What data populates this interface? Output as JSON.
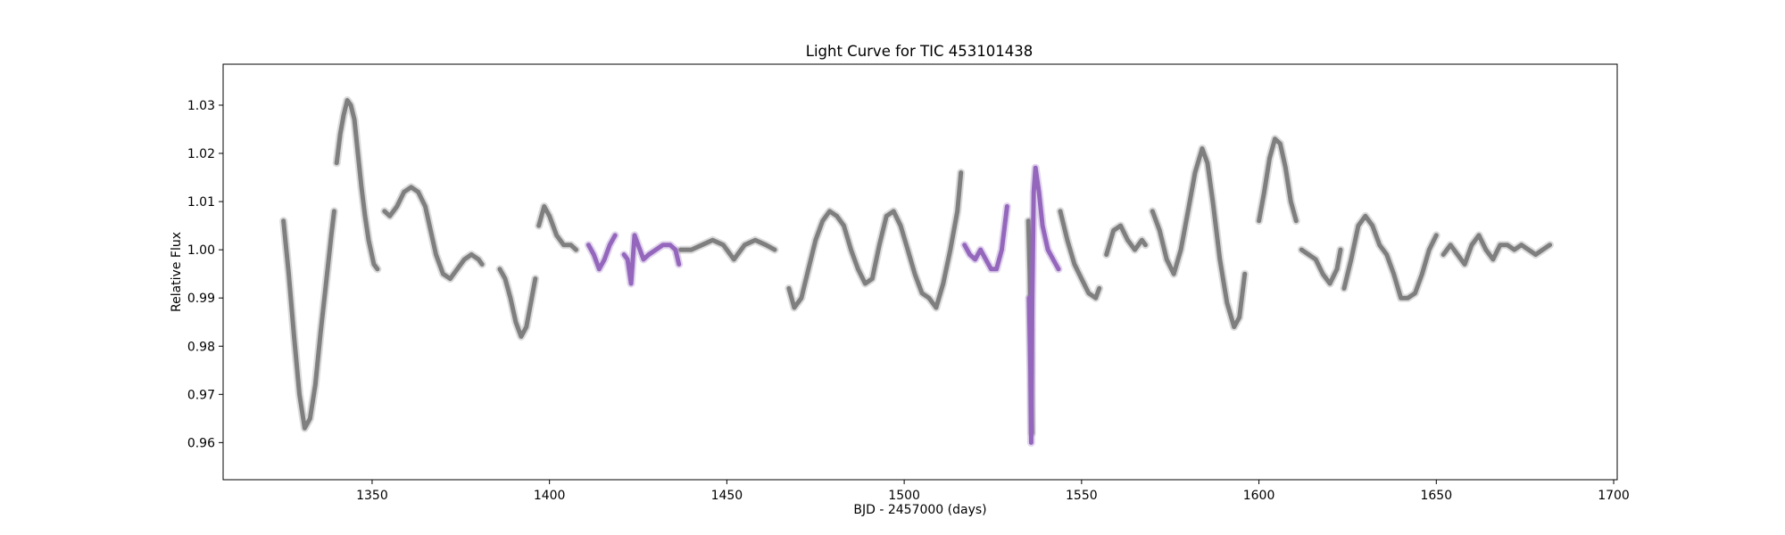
{
  "chart_data": {
    "type": "scatter",
    "title": "Light Curve for TIC 453101438",
    "xlabel": "BJD - 2457000 (days)",
    "ylabel": "Relative Flux",
    "xlim": [
      1308,
      1701
    ],
    "ylim": [
      0.9523,
      1.0385
    ],
    "xticks": [
      1350,
      1400,
      1450,
      1500,
      1550,
      1600,
      1650,
      1700
    ],
    "yticks": [
      0.96,
      0.97,
      0.98,
      0.99,
      1.0,
      1.01,
      1.02,
      1.03
    ],
    "grid": false,
    "legend": "none",
    "colors": {
      "gray": "#7f7f7f",
      "purple": "#9467bd"
    },
    "series": [
      {
        "color_key": "gray",
        "segments": [
          [
            [
              1325.0,
              1.006
            ],
            [
              1326.5,
              0.995
            ],
            [
              1328.0,
              0.982
            ],
            [
              1329.5,
              0.97
            ],
            [
              1331.0,
              0.963
            ],
            [
              1332.5,
              0.965
            ],
            [
              1334.0,
              0.972
            ],
            [
              1335.5,
              0.983
            ],
            [
              1337.0,
              0.993
            ],
            [
              1338.5,
              1.003
            ],
            [
              1339.3,
              1.008
            ]
          ],
          [
            [
              1340.0,
              1.018
            ],
            [
              1341.0,
              1.024
            ],
            [
              1342.0,
              1.028
            ],
            [
              1343.0,
              1.031
            ],
            [
              1344.0,
              1.03
            ],
            [
              1345.0,
              1.027
            ],
            [
              1346.0,
              1.02
            ],
            [
              1347.0,
              1.013
            ],
            [
              1348.0,
              1.007
            ],
            [
              1349.0,
              1.002
            ],
            [
              1350.5,
              0.997
            ],
            [
              1351.5,
              0.996
            ]
          ],
          [
            [
              1353.5,
              1.008
            ],
            [
              1355.0,
              1.007
            ],
            [
              1357.0,
              1.009
            ],
            [
              1359.0,
              1.012
            ],
            [
              1361.0,
              1.013
            ],
            [
              1363.0,
              1.012
            ],
            [
              1365.0,
              1.009
            ],
            [
              1366.5,
              1.004
            ],
            [
              1368.0,
              0.999
            ],
            [
              1370.0,
              0.995
            ],
            [
              1372.0,
              0.994
            ],
            [
              1374.0,
              0.996
            ],
            [
              1376.0,
              0.998
            ],
            [
              1378.0,
              0.999
            ],
            [
              1380.0,
              0.998
            ],
            [
              1381.0,
              0.997
            ]
          ],
          [
            [
              1386.0,
              0.996
            ],
            [
              1387.5,
              0.994
            ],
            [
              1389.0,
              0.99
            ],
            [
              1390.5,
              0.985
            ],
            [
              1392.0,
              0.982
            ],
            [
              1393.5,
              0.984
            ],
            [
              1395.0,
              0.99
            ],
            [
              1396.0,
              0.994
            ]
          ],
          [
            [
              1397.0,
              1.005
            ],
            [
              1398.5,
              1.009
            ],
            [
              1400.0,
              1.007
            ],
            [
              1402.0,
              1.003
            ],
            [
              1404.0,
              1.001
            ],
            [
              1406.0,
              1.001
            ],
            [
              1407.5,
              1.0
            ]
          ],
          [
            [
              1437.0,
              1.0
            ],
            [
              1440.0,
              1.0
            ],
            [
              1443.0,
              1.001
            ],
            [
              1446.0,
              1.002
            ],
            [
              1449.0,
              1.001
            ],
            [
              1452.0,
              0.998
            ],
            [
              1455.0,
              1.001
            ],
            [
              1458.0,
              1.002
            ],
            [
              1461.0,
              1.001
            ],
            [
              1463.5,
              1.0
            ]
          ],
          [
            [
              1467.5,
              0.992
            ],
            [
              1469.0,
              0.988
            ],
            [
              1471.0,
              0.99
            ],
            [
              1473.0,
              0.996
            ],
            [
              1475.0,
              1.002
            ],
            [
              1477.0,
              1.006
            ],
            [
              1479.0,
              1.008
            ],
            [
              1481.0,
              1.007
            ],
            [
              1483.0,
              1.005
            ],
            [
              1485.0,
              1.0
            ],
            [
              1487.0,
              0.996
            ],
            [
              1489.0,
              0.993
            ],
            [
              1491.0,
              0.994
            ],
            [
              1493.0,
              1.001
            ],
            [
              1495.0,
              1.007
            ],
            [
              1497.0,
              1.008
            ],
            [
              1499.0,
              1.005
            ],
            [
              1501.0,
              1.0
            ],
            [
              1503.0,
              0.995
            ],
            [
              1505.0,
              0.991
            ],
            [
              1507.0,
              0.99
            ],
            [
              1509.0,
              0.988
            ],
            [
              1511.0,
              0.993
            ],
            [
              1513.0,
              1.0
            ],
            [
              1515.0,
              1.008
            ],
            [
              1516.0,
              1.016
            ]
          ],
          [
            [
              1535.0,
              1.006
            ],
            [
              1535.4,
              0.995
            ],
            [
              1535.7,
              0.98
            ],
            [
              1536.0,
              0.962
            ]
          ],
          [
            [
              1544.0,
              1.008
            ],
            [
              1546.0,
              1.002
            ],
            [
              1548.0,
              0.997
            ],
            [
              1550.0,
              0.994
            ],
            [
              1552.0,
              0.991
            ],
            [
              1554.0,
              0.99
            ],
            [
              1555.0,
              0.992
            ]
          ],
          [
            [
              1557.0,
              0.999
            ],
            [
              1559.0,
              1.004
            ],
            [
              1561.0,
              1.005
            ],
            [
              1563.0,
              1.002
            ],
            [
              1565.0,
              1.0
            ],
            [
              1567.0,
              1.002
            ],
            [
              1568.0,
              1.001
            ]
          ],
          [
            [
              1570.0,
              1.008
            ],
            [
              1572.0,
              1.004
            ],
            [
              1574.0,
              0.998
            ],
            [
              1576.0,
              0.995
            ],
            [
              1578.0,
              1.0
            ],
            [
              1580.0,
              1.008
            ],
            [
              1582.0,
              1.016
            ],
            [
              1584.0,
              1.021
            ],
            [
              1585.5,
              1.018
            ],
            [
              1587.0,
              1.01
            ],
            [
              1589.0,
              0.998
            ],
            [
              1591.0,
              0.989
            ],
            [
              1593.0,
              0.984
            ],
            [
              1594.5,
              0.986
            ],
            [
              1596.0,
              0.995
            ]
          ],
          [
            [
              1600.0,
              1.006
            ],
            [
              1601.5,
              1.012
            ],
            [
              1603.0,
              1.019
            ],
            [
              1604.5,
              1.023
            ],
            [
              1606.0,
              1.022
            ],
            [
              1607.5,
              1.017
            ],
            [
              1609.0,
              1.01
            ],
            [
              1610.5,
              1.006
            ]
          ],
          [
            [
              1612.0,
              1.0
            ],
            [
              1614.0,
              0.999
            ],
            [
              1616.0,
              0.998
            ],
            [
              1618.0,
              0.995
            ],
            [
              1620.0,
              0.993
            ],
            [
              1622.0,
              0.996
            ],
            [
              1623.0,
              1.0
            ]
          ],
          [
            [
              1624.0,
              0.992
            ],
            [
              1626.0,
              0.998
            ],
            [
              1628.0,
              1.005
            ],
            [
              1630.0,
              1.007
            ],
            [
              1632.0,
              1.005
            ],
            [
              1634.0,
              1.001
            ],
            [
              1636.0,
              0.999
            ],
            [
              1638.0,
              0.995
            ],
            [
              1640.0,
              0.99
            ],
            [
              1642.0,
              0.99
            ],
            [
              1644.0,
              0.991
            ],
            [
              1646.0,
              0.995
            ],
            [
              1648.0,
              1.0
            ],
            [
              1650.0,
              1.003
            ]
          ],
          [
            [
              1652.0,
              0.999
            ],
            [
              1654.0,
              1.001
            ],
            [
              1656.0,
              0.999
            ],
            [
              1658.0,
              0.997
            ],
            [
              1660.0,
              1.001
            ],
            [
              1662.0,
              1.003
            ],
            [
              1664.0,
              1.0
            ],
            [
              1666.0,
              0.998
            ],
            [
              1668.0,
              1.001
            ],
            [
              1670.0,
              1.001
            ],
            [
              1672.0,
              1.0
            ],
            [
              1674.0,
              1.001
            ],
            [
              1676.0,
              1.0
            ],
            [
              1678.0,
              0.999
            ],
            [
              1680.0,
              1.0
            ],
            [
              1682.0,
              1.001
            ]
          ]
        ]
      },
      {
        "color_key": "purple",
        "segments": [
          [
            [
              1411.0,
              1.001
            ],
            [
              1412.5,
              0.999
            ],
            [
              1414.0,
              0.996
            ],
            [
              1415.5,
              0.998
            ],
            [
              1417.0,
              1.001
            ],
            [
              1418.5,
              1.003
            ]
          ],
          [
            [
              1421.0,
              0.999
            ],
            [
              1422.0,
              0.998
            ],
            [
              1423.0,
              0.993
            ],
            [
              1424.0,
              1.003
            ],
            [
              1425.0,
              1.001
            ],
            [
              1426.5,
              0.998
            ],
            [
              1428.0,
              0.999
            ],
            [
              1430.0,
              1.0
            ],
            [
              1432.0,
              1.001
            ],
            [
              1434.0,
              1.001
            ],
            [
              1435.5,
              1.0
            ],
            [
              1436.5,
              0.997
            ]
          ],
          [
            [
              1517.0,
              1.001
            ],
            [
              1518.5,
              0.999
            ],
            [
              1520.0,
              0.998
            ],
            [
              1521.5,
              1.0
            ],
            [
              1523.0,
              0.998
            ],
            [
              1524.5,
              0.996
            ],
            [
              1526.0,
              0.996
            ],
            [
              1527.5,
              1.0
            ],
            [
              1529.0,
              1.009
            ]
          ],
          [
            [
              1535.2,
              0.99
            ],
            [
              1535.6,
              0.975
            ],
            [
              1535.8,
              0.96
            ],
            [
              1536.1,
              0.99
            ],
            [
              1536.5,
              1.012
            ],
            [
              1537.0,
              1.017
            ],
            [
              1538.0,
              1.012
            ],
            [
              1539.0,
              1.005
            ],
            [
              1540.5,
              1.0
            ],
            [
              1542.0,
              0.998
            ],
            [
              1543.5,
              0.996
            ]
          ]
        ]
      }
    ]
  }
}
